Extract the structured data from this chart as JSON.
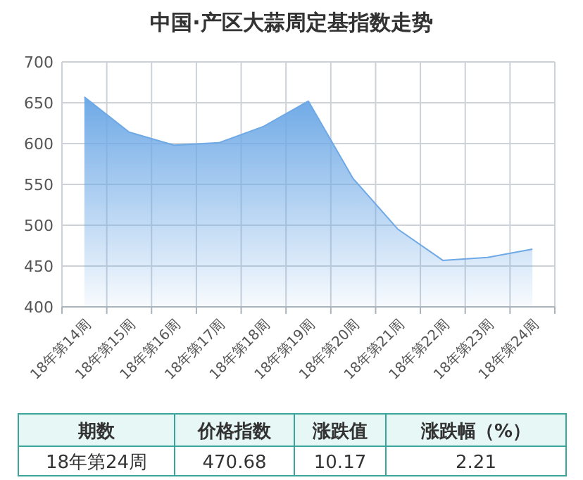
{
  "chart_data": {
    "type": "area",
    "title": "中国·产区大蒜周定基指数走势",
    "categories": [
      "18年第14周",
      "18年第15周",
      "18年第16周",
      "18年第17周",
      "18年第18周",
      "18年第19周",
      "18年第20周",
      "18年第21周",
      "18年第22周",
      "18年第23周",
      "18年第24周"
    ],
    "series": [
      {
        "color": "#6ea9e6",
        "values": [
          657,
          614,
          598,
          601,
          621,
          652,
          557,
          495,
          457,
          460.51,
          470.68
        ]
      }
    ],
    "ylim": [
      400,
      700
    ],
    "yticks": [
      400,
      450,
      500,
      550,
      600,
      650,
      700
    ],
    "grid": true,
    "annotations": [
      "期数",
      "价格指数",
      "涨跌值",
      "涨跌幅（%）",
      "18年第24周",
      "470.68",
      "10.17",
      "2.21"
    ]
  }
}
